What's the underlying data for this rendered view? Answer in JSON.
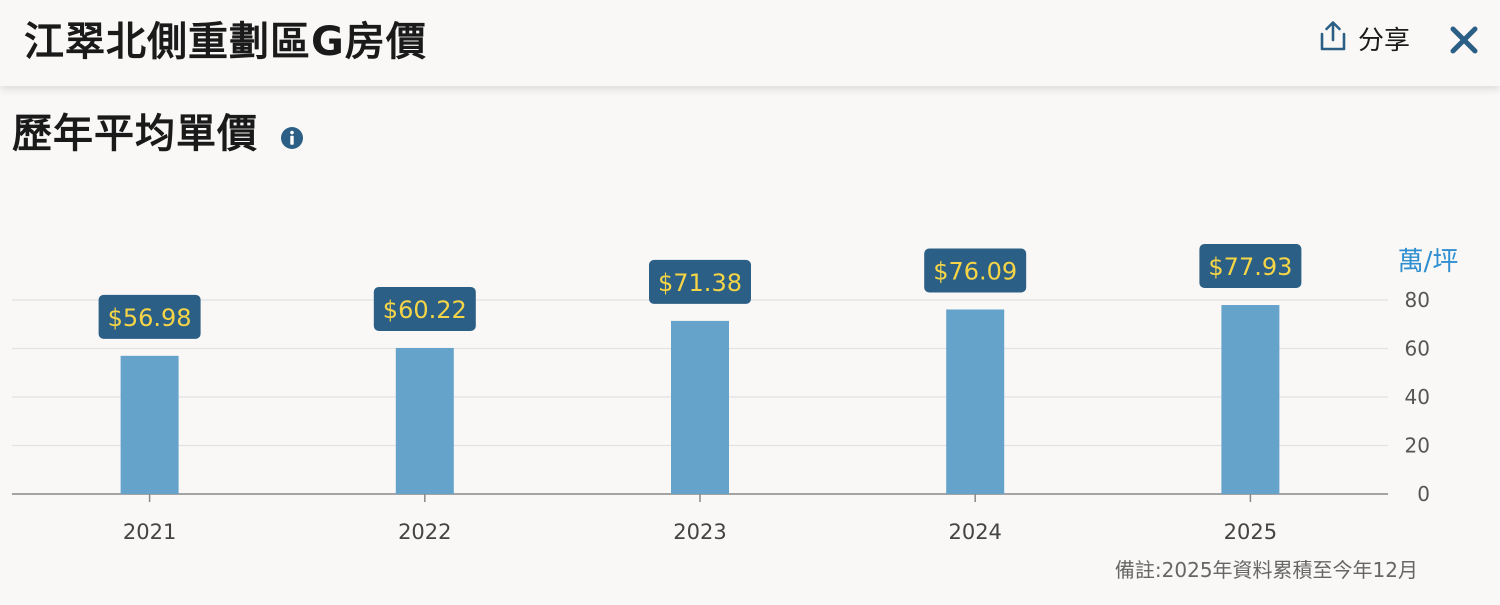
{
  "header": {
    "title": "江翠北側重劃區G房價",
    "share_label": "分享"
  },
  "section": {
    "title": "歷年平均單價"
  },
  "icons": {
    "share": "share-icon",
    "close": "close-icon",
    "info": "info-icon"
  },
  "colors": {
    "bar": "#66a3cb",
    "label_bg": "#2c5f85",
    "label_text": "#f5d547",
    "unit_text": "#2f8fd0",
    "close": "#2c5f85"
  },
  "chart_data": {
    "type": "bar",
    "categories": [
      "2021",
      "2022",
      "2023",
      "2024",
      "2025"
    ],
    "values": [
      56.98,
      60.22,
      71.38,
      76.09,
      77.93
    ],
    "value_labels": [
      "$56.98",
      "$60.22",
      "$71.38",
      "$76.09",
      "$77.93"
    ],
    "ylabel": "萬/坪",
    "ylim": [
      0,
      80
    ],
    "yticks": [
      0,
      20,
      40,
      60,
      80
    ],
    "y_axis_position": "right",
    "grid": true,
    "legend": "none"
  },
  "footnote": "備註:2025年資料累積至今年12月"
}
